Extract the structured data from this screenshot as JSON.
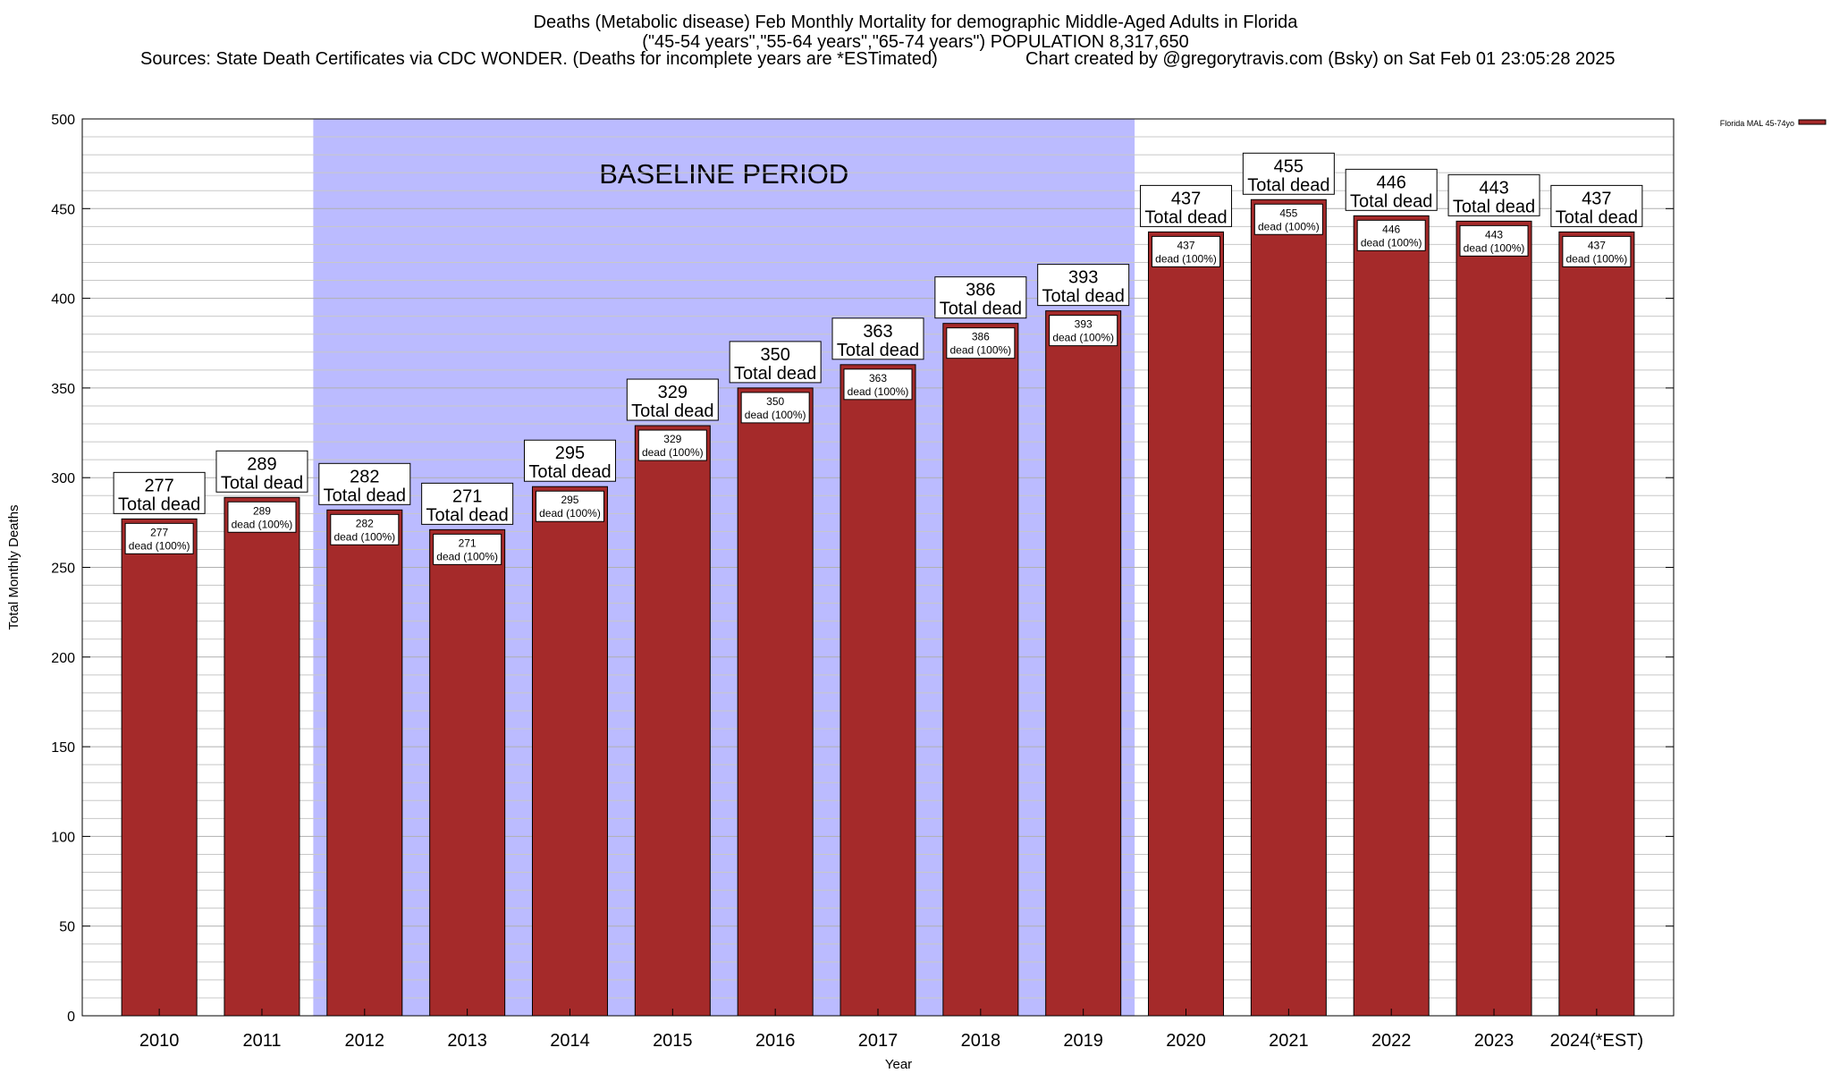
{
  "titles": {
    "line1": "Deaths (Metabolic disease) Feb Monthly Mortality for demographic Middle-Aged Adults in Florida",
    "line2": "(\"45-54 years\",\"55-64 years\",\"65-74 years\") POPULATION 8,317,650",
    "line3_left": "Sources: State Death Certificates via CDC WONDER. (Deaths for incomplete years are *ESTimated)",
    "line3_right": "Chart created by @gregorytravis.com (Bsky) on Sat Feb 01 23:05:28 2025"
  },
  "chart_data": {
    "type": "bar",
    "title": "Deaths (Metabolic disease) Feb Monthly Mortality for demographic Middle-Aged Adults in Florida",
    "xlabel": "Year",
    "ylabel": "Total Monthly Deaths",
    "ylim": [
      0,
      500
    ],
    "yticks": [
      0,
      50,
      100,
      150,
      200,
      250,
      300,
      350,
      400,
      450,
      500
    ],
    "grid": true,
    "legend_position": "top-right",
    "categories": [
      "2010",
      "2011",
      "2012",
      "2013",
      "2014",
      "2015",
      "2016",
      "2017",
      "2018",
      "2019",
      "2020",
      "2021",
      "2022",
      "2023",
      "2024(*EST)"
    ],
    "series": [
      {
        "name": "Florida MAL 45-74yo",
        "color": "#a52a2a",
        "values": [
          277,
          289,
          282,
          271,
          295,
          329,
          350,
          363,
          386,
          393,
          437,
          455,
          446,
          443,
          437
        ]
      }
    ],
    "top_label_suffix": "Total dead",
    "inner_label_suffix": "dead (100%)",
    "baseline_period": {
      "label": "BASELINE PERIOD",
      "start": "2012",
      "end": "2019",
      "color": "#bbbbff"
    }
  }
}
